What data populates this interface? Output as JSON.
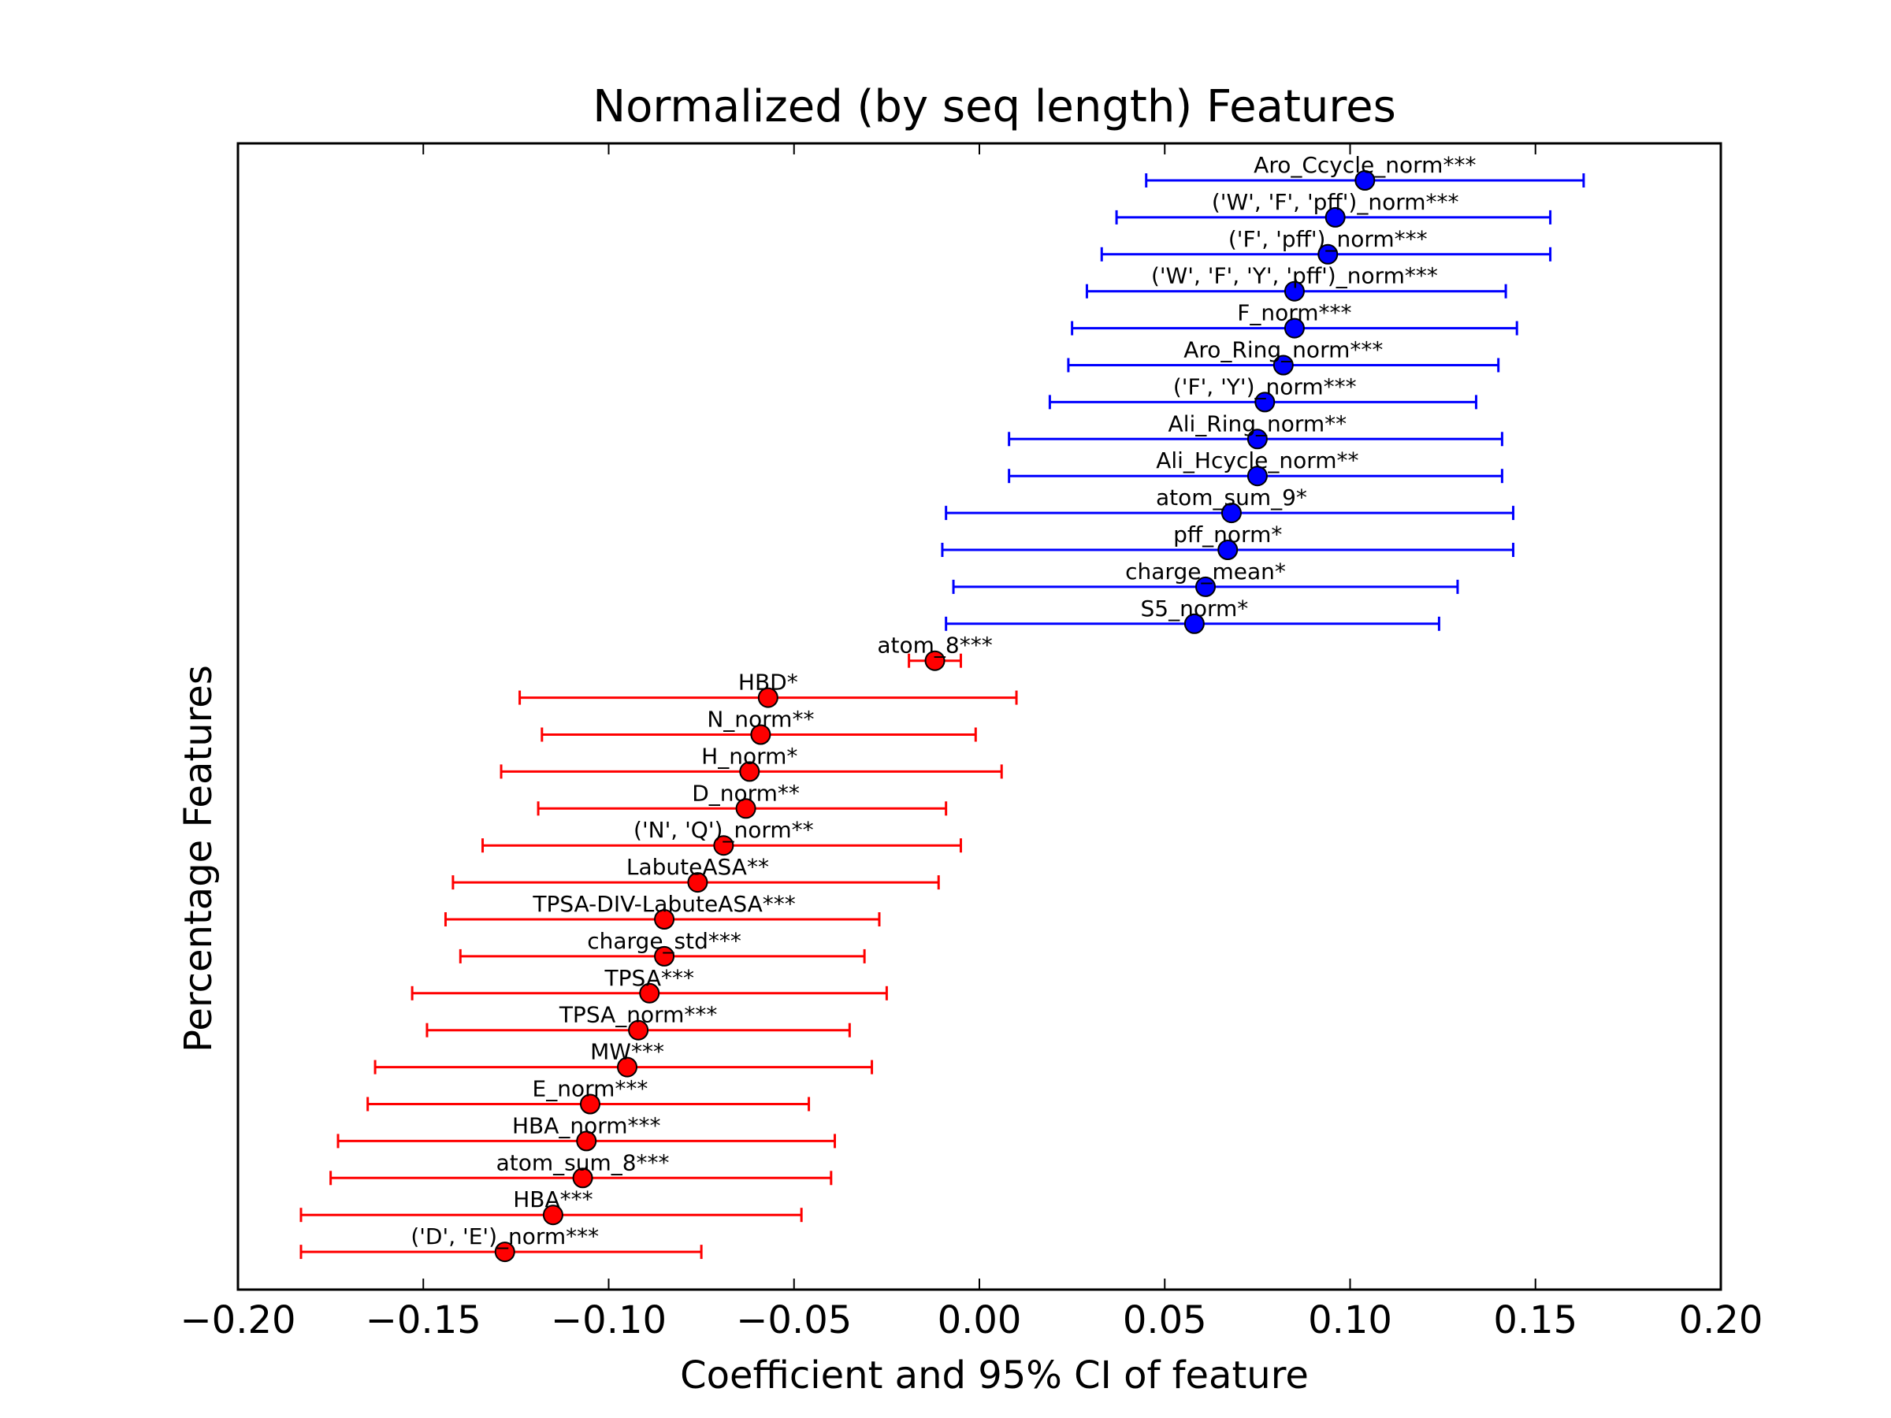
{
  "chart_data": {
    "type": "scatter",
    "title": "Normalized (by seq length) Features",
    "xlabel": "Coefficient and 95% CI of feature",
    "ylabel": "Percentage Features",
    "xlim": [
      -0.2,
      0.2
    ],
    "xticks": [
      "−0.20",
      "−0.15",
      "−0.10",
      "−0.05",
      "0.00",
      "0.05",
      "0.10",
      "0.15",
      "0.20"
    ],
    "xtick_values": [
      -0.2,
      -0.15,
      -0.1,
      -0.05,
      0.0,
      0.05,
      0.1,
      0.15,
      0.2
    ],
    "grid": false,
    "legend": "none",
    "positive_color": "#0000ff",
    "negative_color": "#ff0000",
    "features": [
      {
        "label": "Aro_Ccycle_norm***",
        "coef": 0.104,
        "lo": 0.045,
        "hi": 0.163
      },
      {
        "label": "('W', 'F', 'pff')_norm***",
        "coef": 0.096,
        "lo": 0.037,
        "hi": 0.154
      },
      {
        "label": "('F', 'pff')_norm***",
        "coef": 0.094,
        "lo": 0.033,
        "hi": 0.154
      },
      {
        "label": "('W', 'F', 'Y', 'pff')_norm***",
        "coef": 0.085,
        "lo": 0.029,
        "hi": 0.142
      },
      {
        "label": "F_norm***",
        "coef": 0.085,
        "lo": 0.025,
        "hi": 0.145
      },
      {
        "label": "Aro_Ring_norm***",
        "coef": 0.082,
        "lo": 0.024,
        "hi": 0.14
      },
      {
        "label": "('F', 'Y')_norm***",
        "coef": 0.077,
        "lo": 0.019,
        "hi": 0.134
      },
      {
        "label": "Ali_Ring_norm**",
        "coef": 0.075,
        "lo": 0.008,
        "hi": 0.141
      },
      {
        "label": "Ali_Hcycle_norm**",
        "coef": 0.075,
        "lo": 0.008,
        "hi": 0.141
      },
      {
        "label": "atom_sum_9*",
        "coef": 0.068,
        "lo": -0.009,
        "hi": 0.144
      },
      {
        "label": "pff_norm*",
        "coef": 0.067,
        "lo": -0.01,
        "hi": 0.144
      },
      {
        "label": "charge_mean*",
        "coef": 0.061,
        "lo": -0.007,
        "hi": 0.129
      },
      {
        "label": "S5_norm*",
        "coef": 0.058,
        "lo": -0.009,
        "hi": 0.124
      },
      {
        "label": "atom_8***",
        "coef": -0.012,
        "lo": -0.019,
        "hi": -0.005
      },
      {
        "label": "HBD*",
        "coef": -0.057,
        "lo": -0.124,
        "hi": 0.01
      },
      {
        "label": "N_norm**",
        "coef": -0.059,
        "lo": -0.118,
        "hi": -0.001
      },
      {
        "label": "H_norm*",
        "coef": -0.062,
        "lo": -0.129,
        "hi": 0.006
      },
      {
        "label": "D_norm**",
        "coef": -0.063,
        "lo": -0.119,
        "hi": -0.009
      },
      {
        "label": "('N', 'Q')_norm**",
        "coef": -0.069,
        "lo": -0.134,
        "hi": -0.005
      },
      {
        "label": "LabuteASA**",
        "coef": -0.076,
        "lo": -0.142,
        "hi": -0.011
      },
      {
        "label": "TPSA-DIV-LabuteASA***",
        "coef": -0.085,
        "lo": -0.144,
        "hi": -0.027
      },
      {
        "label": "charge_std***",
        "coef": -0.085,
        "lo": -0.14,
        "hi": -0.031
      },
      {
        "label": "TPSA***",
        "coef": -0.089,
        "lo": -0.153,
        "hi": -0.025
      },
      {
        "label": "TPSA_norm***",
        "coef": -0.092,
        "lo": -0.149,
        "hi": -0.035
      },
      {
        "label": "MW***",
        "coef": -0.095,
        "lo": -0.163,
        "hi": -0.029
      },
      {
        "label": "E_norm***",
        "coef": -0.105,
        "lo": -0.165,
        "hi": -0.046
      },
      {
        "label": "HBA_norm***",
        "coef": -0.106,
        "lo": -0.173,
        "hi": -0.039
      },
      {
        "label": "atom_sum_8***",
        "coef": -0.107,
        "lo": -0.175,
        "hi": -0.04
      },
      {
        "label": "HBA***",
        "coef": -0.115,
        "lo": -0.183,
        "hi": -0.048
      },
      {
        "label": "('D', 'E')_norm***",
        "coef": -0.128,
        "lo": -0.183,
        "hi": -0.075
      }
    ]
  }
}
